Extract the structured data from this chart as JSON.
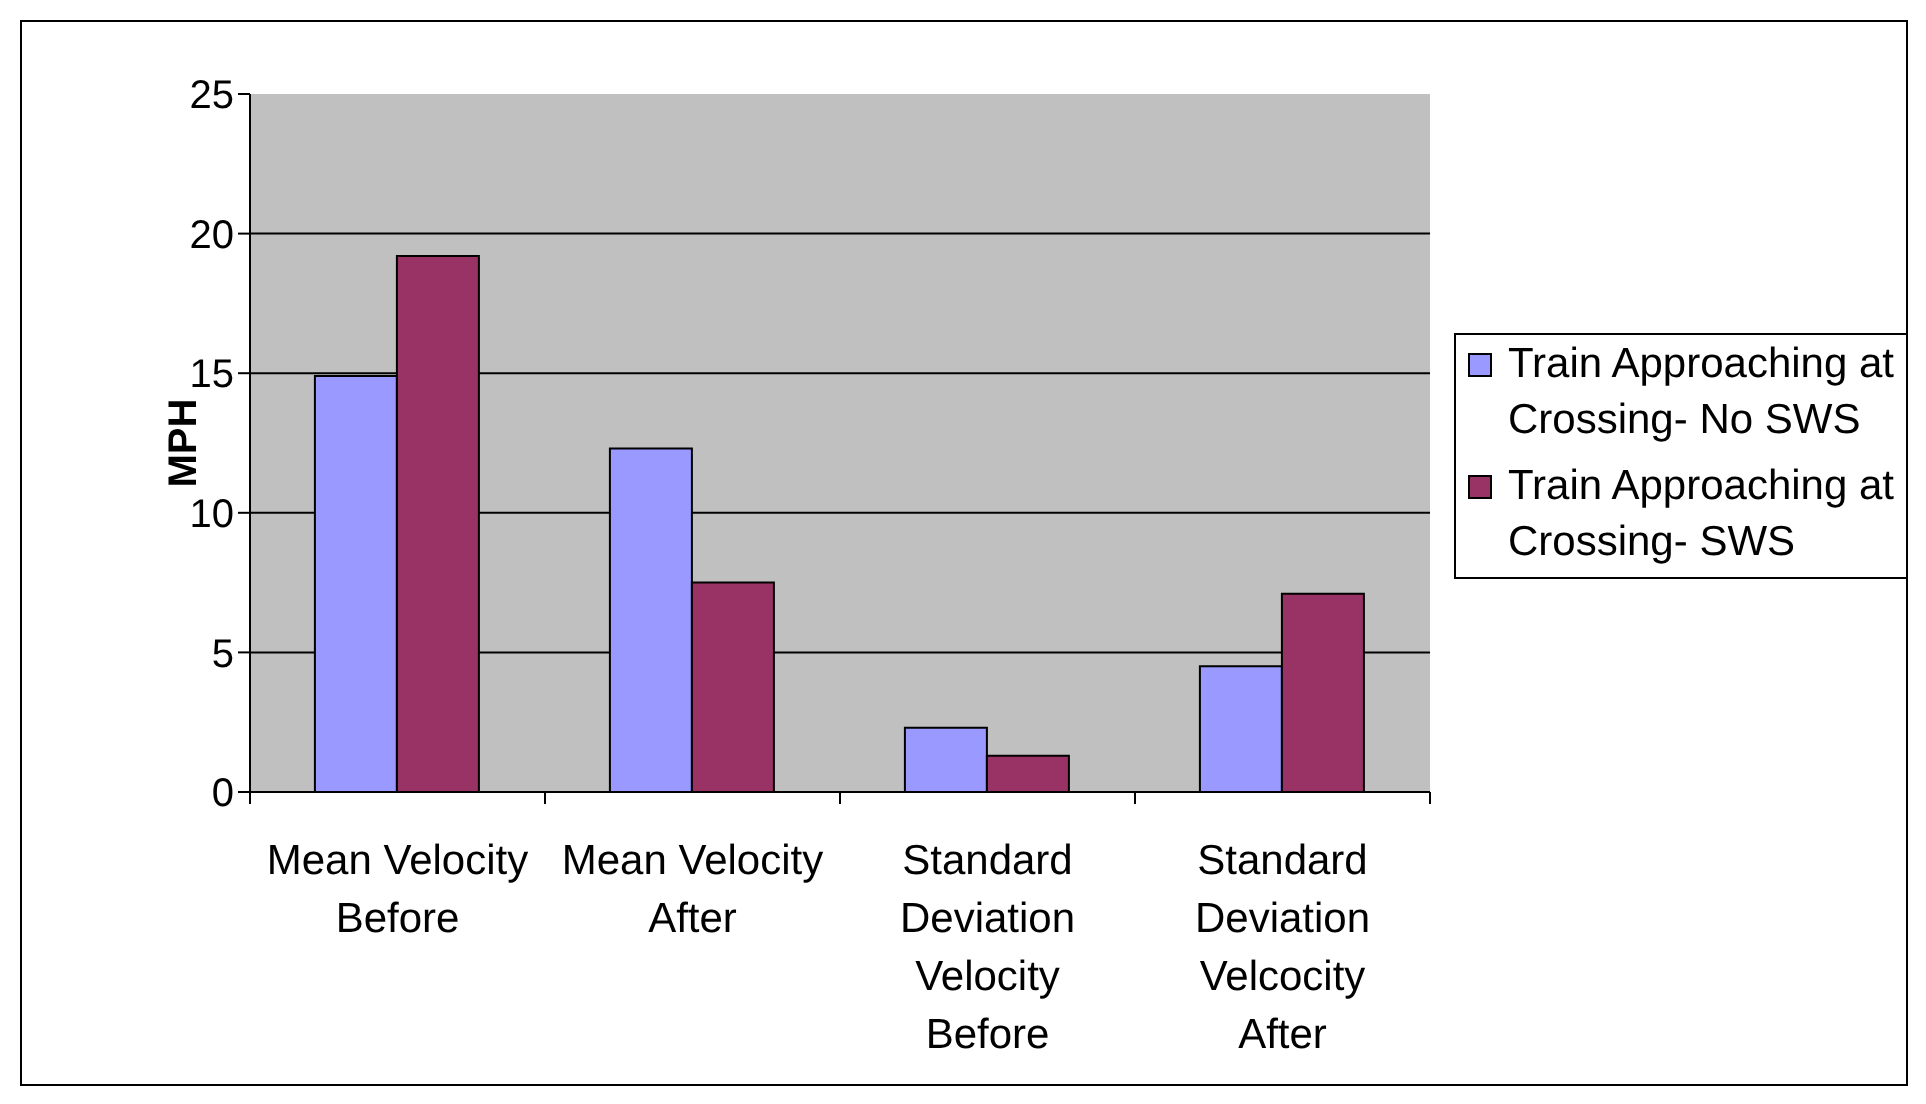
{
  "chart_data": {
    "type": "bar",
    "categories": [
      "Mean Velocity Before",
      "Mean Velocity After",
      "Standard Deviation Velocity Before",
      "Standard Deviation Velcocity After"
    ],
    "series": [
      {
        "name": "Train Approaching at Crossing- No SWS",
        "color": "#9999ff",
        "values": [
          14.9,
          12.3,
          2.3,
          4.5
        ]
      },
      {
        "name": "Train Approaching at Crossing- SWS",
        "color": "#993366",
        "values": [
          19.2,
          7.5,
          1.3,
          7.1
        ]
      }
    ],
    "ylabel": "MPH",
    "ylim": [
      0,
      25
    ],
    "yticks": [
      0,
      5,
      10,
      15,
      20,
      25
    ],
    "grid": "y",
    "legend": "right"
  }
}
